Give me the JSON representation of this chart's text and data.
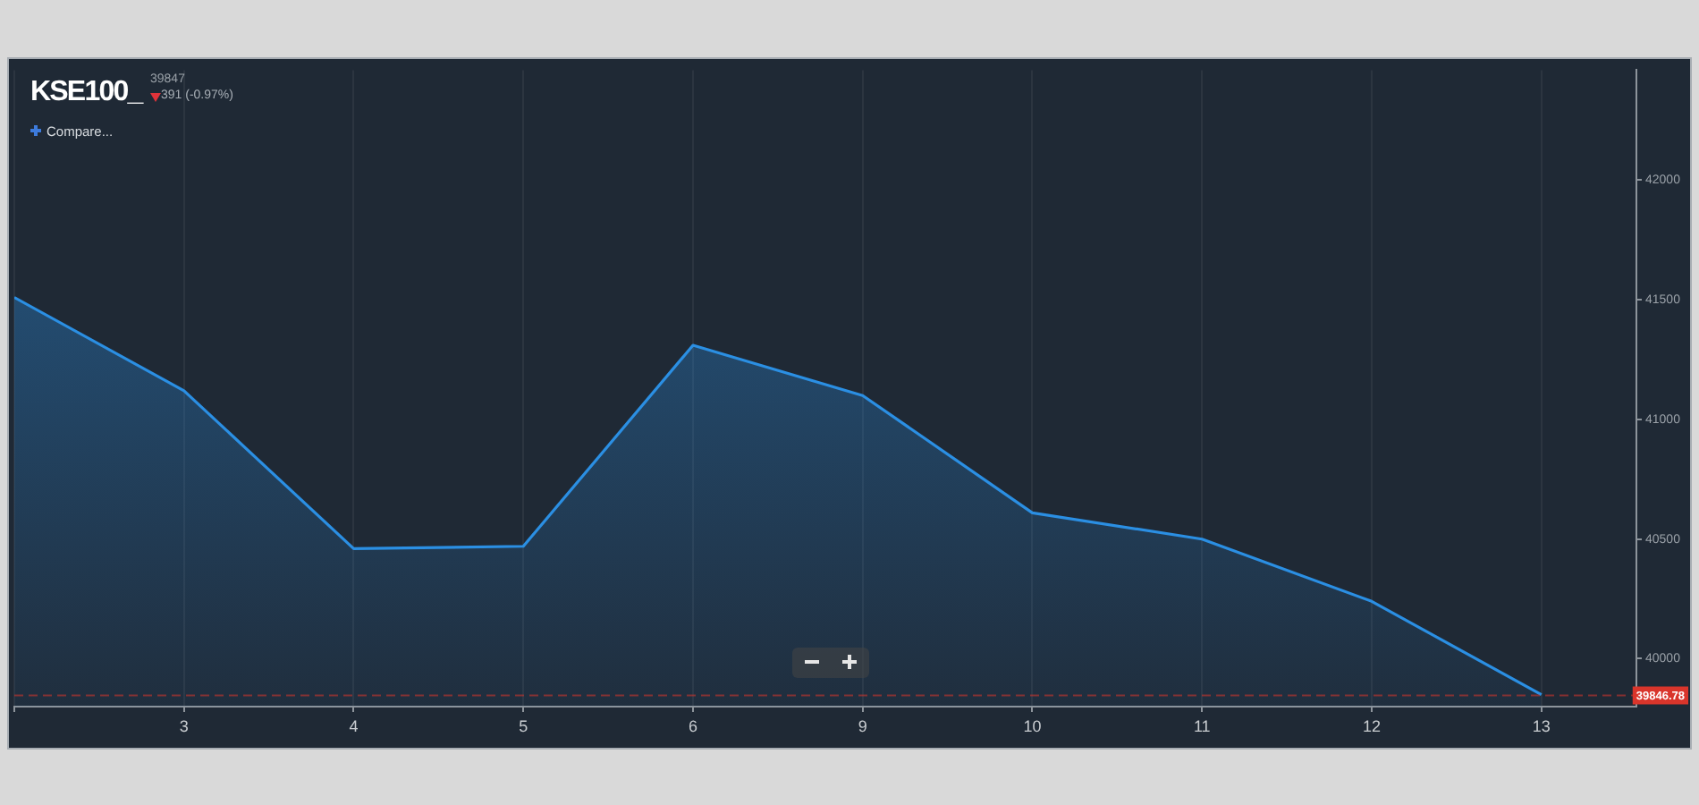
{
  "chart_data": {
    "type": "area",
    "title": "KSE100_",
    "subtitle": "39847",
    "annotations": [
      "391 (-0.97%)",
      "Compare..."
    ],
    "categories": [
      null,
      "3",
      "4",
      "5",
      "6",
      "9",
      "10",
      "11",
      "12",
      "13"
    ],
    "values": [
      41510,
      41120,
      40460,
      40470,
      41310,
      41100,
      40610,
      40500,
      40240,
      39850
    ],
    "color": "#2b8fe3",
    "ylim": [
      39800,
      42460
    ],
    "yticks": [
      40000,
      40500,
      41000,
      41500,
      42000
    ],
    "ref_lines": [
      {
        "axis": "y",
        "value": 39846.78,
        "label": "39846.78",
        "color": "#d9352b",
        "line_style": "dashed"
      }
    ],
    "grid": "x",
    "marker": "none"
  }
}
